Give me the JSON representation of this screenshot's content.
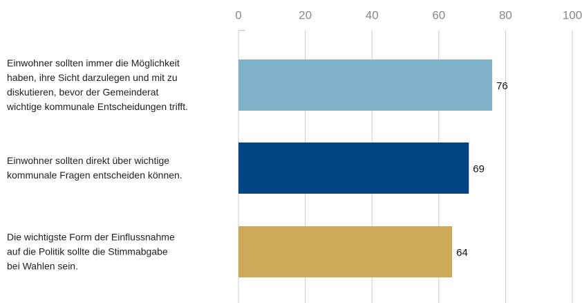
{
  "chart_data": {
    "type": "hbar",
    "categories": [
      "Einwohner sollten immer die Möglichkeit\nhaben, ihre Sicht darzulegen und mit zu\ndiskutieren, bevor der Gemeinderat\nwichtige kommunale Entscheidungen trifft.",
      "Einwohner sollten direkt über wichtige\nkommunale Fragen entscheiden können.",
      "Die wichtigste Form der Einflussnahme\nauf die Politik sollte die Stimmabgabe\nbei Wahlen sein."
    ],
    "values": [
      76,
      69,
      64
    ],
    "colors": [
      "#7fb2c8",
      "#004481",
      "#cdaa5a"
    ],
    "xlim": [
      0,
      100
    ],
    "xticks": [
      0,
      20,
      40,
      60,
      80,
      100
    ],
    "grid": true
  }
}
